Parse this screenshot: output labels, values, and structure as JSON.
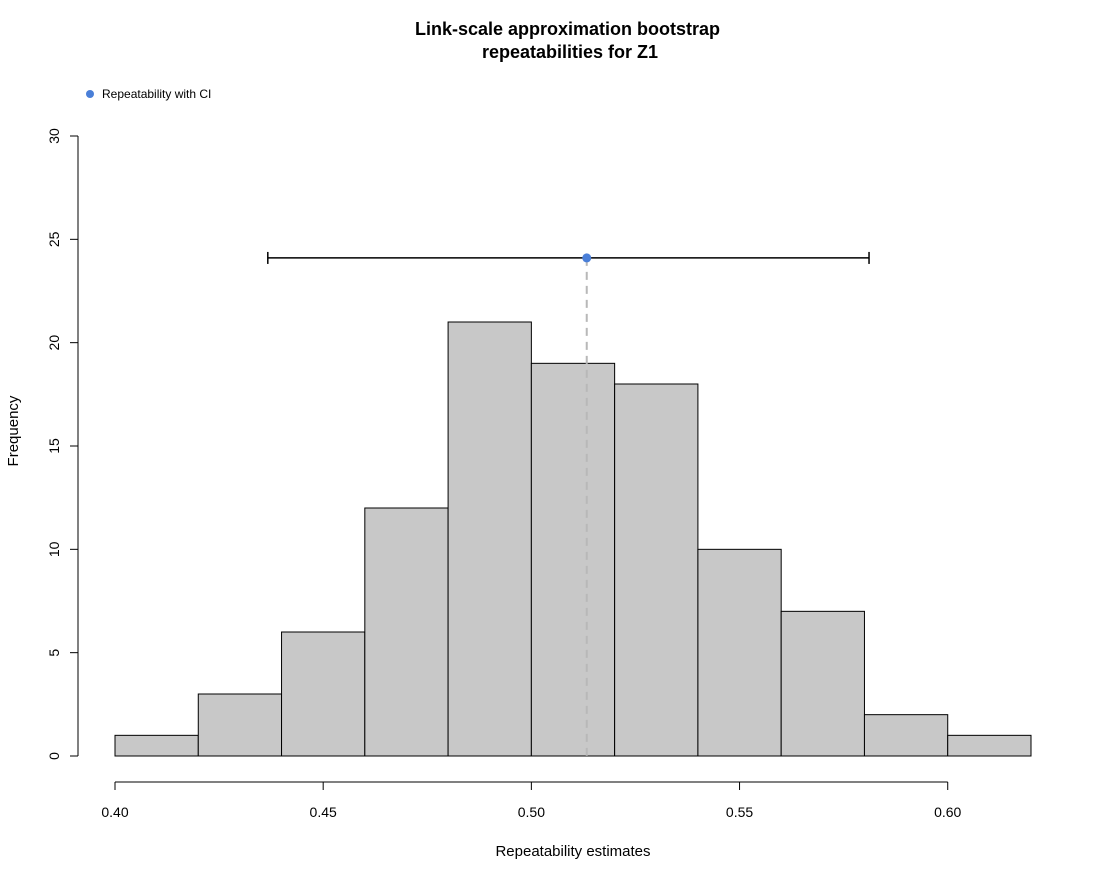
{
  "chart_data": {
    "type": "bar",
    "title_lines": [
      "Link-scale approximation bootstrap",
      "repeatabilities for Z1"
    ],
    "xlabel": "Repeatability estimates",
    "ylabel": "Frequency",
    "xlim": [
      0.4,
      0.62
    ],
    "ylim": [
      0,
      30
    ],
    "x_ticks": [
      "0.40",
      "0.45",
      "0.50",
      "0.55",
      "0.60"
    ],
    "y_ticks": [
      "0",
      "5",
      "10",
      "15",
      "20",
      "25",
      "30"
    ],
    "bins": [
      {
        "start": 0.4,
        "end": 0.42,
        "count": 1
      },
      {
        "start": 0.42,
        "end": 0.44,
        "count": 3
      },
      {
        "start": 0.44,
        "end": 0.46,
        "count": 6
      },
      {
        "start": 0.46,
        "end": 0.48,
        "count": 12
      },
      {
        "start": 0.48,
        "end": 0.5,
        "count": 21
      },
      {
        "start": 0.5,
        "end": 0.52,
        "count": 19
      },
      {
        "start": 0.52,
        "end": 0.54,
        "count": 18
      },
      {
        "start": 0.54,
        "end": 0.56,
        "count": 10
      },
      {
        "start": 0.56,
        "end": 0.58,
        "count": 7
      },
      {
        "start": 0.58,
        "end": 0.6,
        "count": 2
      },
      {
        "start": 0.6,
        "end": 0.62,
        "count": 1
      }
    ],
    "estimate": {
      "value": 0.5133,
      "ci_lower": 0.4367,
      "ci_upper": 0.5811,
      "y": 24.1
    },
    "legend": {
      "label": "Repeatability with CI",
      "placement": "top-left"
    },
    "colors": {
      "bar_fill": "#c8c8c8",
      "bar_stroke": "#000000",
      "point": "#4a7fd8",
      "guide_line": "#b8b8b8"
    },
    "grid": false
  }
}
